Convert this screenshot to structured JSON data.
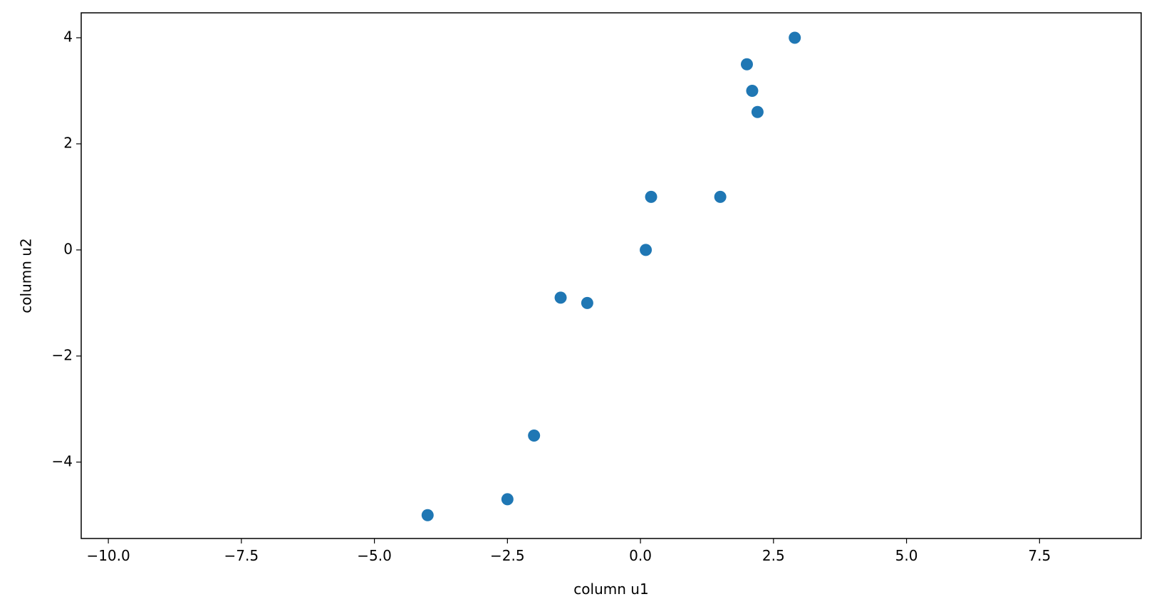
{
  "chart_data": {
    "type": "scatter",
    "x_label": "column u1",
    "y_label": "column u2",
    "series": [
      {
        "color": "#1f77b4",
        "x": [
          2.9,
          2.0,
          2.1,
          2.2,
          0.2,
          1.5,
          0.1,
          -1.5,
          -1.0,
          -2.0,
          -2.5,
          -4.0
        ],
        "values": [
          4.0,
          3.5,
          3.0,
          2.6,
          1.0,
          1.0,
          0.0,
          -0.9,
          -1.0,
          -3.5,
          -4.7,
          -5.0
        ]
      }
    ],
    "xlim": [
      -10.51,
      9.41
    ],
    "ylim": [
      -5.44,
      4.47
    ],
    "xticks": [
      {
        "value": -10,
        "label": "−10.0"
      },
      {
        "value": -7.5,
        "label": "−7.5"
      },
      {
        "value": -5,
        "label": "−5.0"
      },
      {
        "value": -2.5,
        "label": "−2.5"
      },
      {
        "value": 0,
        "label": "0.0"
      },
      2.5,
      {
        "value": 5,
        "label": "5.0"
      },
      7.5
    ],
    "yticks": [
      {
        "value": -4,
        "label": "−4"
      },
      {
        "value": -2,
        "label": "−2"
      },
      0,
      2,
      4
    ],
    "grid": false
  }
}
